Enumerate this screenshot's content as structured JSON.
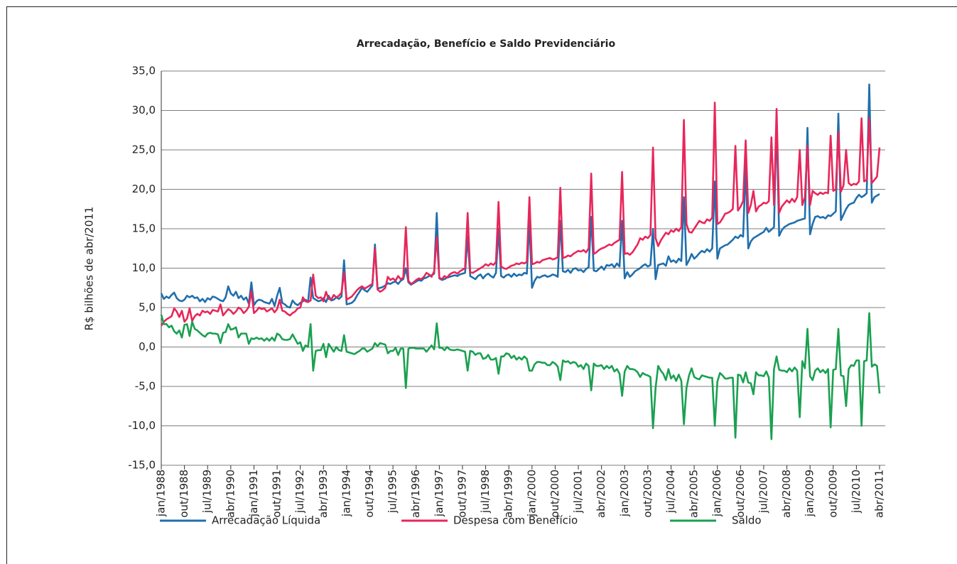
{
  "chart_data": {
    "type": "line",
    "title": "Arrecadação, Benefício e Saldo Previdenciário",
    "y_label": "R$ bilhões de abr/2011",
    "ylim": [
      -15,
      35
    ],
    "yticks": [
      {
        "value": -15,
        "label": "-15,0"
      },
      {
        "value": -10,
        "label": "-10,0"
      },
      {
        "value": -5,
        "label": "-5,0"
      },
      {
        "value": 0,
        "label": "0,0"
      },
      {
        "value": 5,
        "label": "5,0"
      },
      {
        "value": 10,
        "label": "10,0"
      },
      {
        "value": 15,
        "label": "15,0"
      },
      {
        "value": 20,
        "label": "20,0"
      },
      {
        "value": 25,
        "label": "25,0"
      },
      {
        "value": 30,
        "label": "30,0"
      },
      {
        "value": 35,
        "label": "35,0"
      }
    ],
    "grid": true,
    "legend": "bottom",
    "categories": [
      "jan/1988",
      null,
      null,
      null,
      null,
      null,
      null,
      null,
      null,
      "out/1988",
      null,
      null,
      null,
      null,
      null,
      null,
      null,
      null,
      "jul/1989",
      null,
      null,
      null,
      null,
      null,
      null,
      null,
      null,
      "abr/1990",
      null,
      null,
      null,
      null,
      null,
      null,
      null,
      null,
      "jan/1991",
      null,
      null,
      null,
      null,
      null,
      null,
      null,
      null,
      "out/1991",
      null,
      null,
      null,
      null,
      null,
      null,
      null,
      null,
      "jul/1992",
      null,
      null,
      null,
      null,
      null,
      null,
      null,
      null,
      "abr/1993",
      null,
      null,
      null,
      null,
      null,
      null,
      null,
      null,
      "jan/1994",
      null,
      null,
      null,
      null,
      null,
      null,
      null,
      null,
      "out/1994",
      null,
      null,
      null,
      null,
      null,
      null,
      null,
      null,
      "jul/1995",
      null,
      null,
      null,
      null,
      null,
      null,
      null,
      null,
      "abr/1996",
      null,
      null,
      null,
      null,
      null,
      null,
      null,
      null,
      "jan/1997",
      null,
      null,
      null,
      null,
      null,
      null,
      null,
      null,
      "out/1997",
      null,
      null,
      null,
      null,
      null,
      null,
      null,
      null,
      "jul/1998",
      null,
      null,
      null,
      null,
      null,
      null,
      null,
      null,
      "abr/1999",
      null,
      null,
      null,
      null,
      null,
      null,
      null,
      null,
      "jan/2000",
      null,
      null,
      null,
      null,
      null,
      null,
      null,
      null,
      "out/2000",
      null,
      null,
      null,
      null,
      null,
      null,
      null,
      null,
      "jul/2001",
      null,
      null,
      null,
      null,
      null,
      null,
      null,
      null,
      "abr/2002",
      null,
      null,
      null,
      null,
      null,
      null,
      null,
      null,
      "jan/2003",
      null,
      null,
      null,
      null,
      null,
      null,
      null,
      null,
      "out/2003",
      null,
      null,
      null,
      null,
      null,
      null,
      null,
      null,
      "jul/2004",
      null,
      null,
      null,
      null,
      null,
      null,
      null,
      null,
      "abr/2005",
      null,
      null,
      null,
      null,
      null,
      null,
      null,
      null,
      "jan/2006",
      null,
      null,
      null,
      null,
      null,
      null,
      null,
      null,
      "out/2006",
      null,
      null,
      null,
      null,
      null,
      null,
      null,
      null,
      "jul/2007",
      null,
      null,
      null,
      null,
      null,
      null,
      null,
      null,
      "abr/2008",
      null,
      null,
      null,
      null,
      null,
      null,
      null,
      null,
      "jan/2009",
      null,
      null,
      null,
      null,
      null,
      null,
      null,
      null,
      "out/2009",
      null,
      null,
      null,
      null,
      null,
      null,
      null,
      null,
      "jul/2010",
      null,
      null,
      null,
      null,
      null,
      null,
      null,
      null,
      "abr/2011"
    ],
    "series": [
      {
        "name": "Arrecadação Líquida",
        "color": "#1f6fad",
        "values": [
          6.8,
          6.1,
          6.4,
          6.2,
          6.6,
          6.9,
          6.2,
          5.9,
          5.8,
          6.0,
          6.5,
          6.3,
          6.5,
          6.2,
          6.3,
          5.8,
          6.1,
          5.7,
          6.2,
          6.0,
          6.4,
          6.3,
          6.1,
          5.9,
          5.8,
          6.3,
          7.7,
          6.8,
          6.5,
          7.0,
          6.2,
          6.5,
          6.0,
          6.3,
          5.5,
          8.2,
          5.3,
          5.8,
          6.0,
          5.9,
          5.7,
          5.6,
          5.5,
          6.1,
          5.2,
          6.5,
          7.5,
          5.6,
          5.4,
          5.1,
          5.0,
          5.9,
          5.5,
          5.3,
          5.6,
          5.8,
          6.0,
          5.7,
          8.8,
          6.2,
          6.0,
          5.8,
          5.9,
          6.2,
          5.7,
          6.5,
          5.9,
          6.0,
          6.3,
          6.1,
          6.4,
          11.0,
          5.4,
          5.5,
          5.6,
          5.9,
          6.5,
          7.0,
          7.5,
          7.2,
          7.0,
          7.4,
          7.8,
          13.0,
          7.4,
          7.5,
          7.6,
          7.8,
          8.1,
          8.0,
          8.2,
          8.3,
          8.0,
          8.4,
          8.6,
          10.0,
          8.2,
          7.9,
          8.1,
          8.3,
          8.5,
          8.4,
          8.7,
          8.8,
          9.0,
          9.1,
          9.3,
          17.0,
          8.7,
          8.5,
          8.6,
          8.8,
          8.9,
          9.0,
          9.1,
          9.0,
          9.2,
          9.3,
          9.4,
          14.0,
          9.0,
          8.8,
          8.6,
          9.0,
          9.2,
          8.7,
          9.1,
          9.3,
          9.0,
          8.8,
          9.4,
          15.0,
          9.0,
          8.8,
          9.1,
          9.2,
          8.9,
          9.3,
          9.0,
          9.2,
          9.1,
          9.4,
          9.3,
          16.0,
          7.5,
          8.4,
          8.9,
          8.8,
          9.0,
          9.1,
          8.9,
          9.0,
          9.2,
          9.1,
          8.9,
          16.0,
          9.6,
          9.5,
          9.8,
          9.4,
          9.9,
          10.0,
          9.7,
          9.8,
          9.5,
          9.9,
          10.1,
          16.5,
          9.7,
          9.6,
          9.9,
          10.2,
          9.8,
          10.4,
          10.3,
          10.5,
          10.1,
          10.6,
          10.2,
          16.0,
          8.7,
          9.5,
          8.9,
          9.2,
          9.6,
          9.8,
          10.0,
          10.3,
          10.5,
          10.2,
          10.4,
          15.0,
          8.6,
          10.4,
          10.5,
          10.6,
          10.3,
          11.5,
          10.8,
          11.0,
          10.7,
          11.2,
          10.9,
          19.0,
          10.4,
          11.0,
          11.8,
          11.2,
          11.5,
          11.9,
          12.2,
          12.0,
          12.4,
          12.1,
          12.5,
          21.0,
          11.2,
          12.5,
          12.7,
          12.9,
          13.0,
          13.3,
          13.6,
          14.0,
          13.8,
          14.2,
          14.0,
          23.0,
          12.5,
          13.4,
          13.8,
          14.0,
          14.2,
          14.4,
          14.6,
          15.1,
          14.6,
          14.9,
          15.2,
          29.0,
          14.1,
          14.8,
          15.2,
          15.4,
          15.6,
          15.7,
          15.8,
          16.0,
          16.1,
          16.2,
          16.3,
          27.8,
          14.3,
          15.6,
          16.5,
          16.6,
          16.4,
          16.5,
          16.3,
          16.7,
          16.6,
          16.9,
          17.2,
          29.6,
          16.1,
          16.8,
          17.5,
          18.0,
          18.2,
          18.3,
          18.9,
          19.3,
          19.0,
          19.2,
          19.5,
          33.3,
          18.3,
          19.0,
          19.2,
          19.4
        ]
      },
      {
        "name": "Despesa com Benefício",
        "color": "#e8265a",
        "values": [
          2.7,
          3.2,
          3.5,
          3.7,
          3.9,
          4.9,
          4.5,
          3.8,
          4.6,
          3.2,
          3.6,
          4.9,
          3.3,
          3.9,
          4.2,
          4.0,
          4.6,
          4.4,
          4.5,
          4.2,
          4.7,
          4.6,
          4.5,
          5.4,
          4.0,
          4.4,
          4.8,
          4.6,
          4.2,
          4.5,
          5.0,
          4.8,
          4.3,
          4.6,
          5.1,
          7.1,
          4.3,
          4.6,
          5.0,
          4.8,
          4.9,
          4.5,
          4.7,
          4.9,
          4.4,
          4.8,
          6.0,
          4.6,
          4.5,
          4.2,
          4.0,
          4.3,
          4.5,
          4.9,
          5.0,
          6.3,
          5.8,
          5.7,
          5.9,
          9.2,
          6.5,
          6.2,
          6.3,
          5.8,
          7.0,
          6.1,
          6.0,
          6.6,
          6.3,
          6.5,
          6.9,
          9.5,
          6.0,
          6.2,
          6.4,
          6.8,
          7.2,
          7.5,
          7.7,
          7.4,
          7.6,
          7.8,
          8.0,
          12.5,
          7.3,
          7.0,
          7.2,
          7.5,
          8.9,
          8.5,
          8.7,
          8.4,
          9.0,
          8.6,
          8.8,
          15.2,
          8.4,
          8.0,
          8.2,
          8.5,
          8.7,
          8.6,
          8.9,
          9.4,
          9.2,
          8.9,
          9.6,
          14.0,
          8.8,
          8.6,
          9.0,
          8.8,
          9.2,
          9.4,
          9.5,
          9.3,
          9.6,
          9.8,
          10.0,
          17.0,
          9.5,
          9.4,
          9.6,
          9.8,
          10.0,
          10.2,
          10.5,
          10.3,
          10.6,
          10.4,
          10.8,
          18.4,
          10.2,
          10.0,
          9.9,
          10.1,
          10.3,
          10.4,
          10.6,
          10.5,
          10.7,
          10.6,
          10.8,
          19.0,
          10.5,
          10.6,
          10.8,
          10.7,
          11.0,
          11.1,
          11.2,
          11.3,
          11.1,
          11.2,
          11.4,
          20.2,
          11.3,
          11.4,
          11.6,
          11.5,
          11.8,
          12.0,
          12.2,
          12.1,
          12.3,
          12.0,
          12.5,
          22.0,
          11.8,
          12.0,
          12.3,
          12.5,
          12.6,
          12.8,
          13.0,
          12.9,
          13.2,
          13.4,
          13.6,
          22.2,
          11.8,
          11.9,
          11.7,
          12.0,
          12.5,
          13.0,
          13.8,
          13.6,
          14.0,
          13.8,
          14.2,
          25.3,
          13.8,
          12.8,
          13.5,
          14.0,
          14.5,
          14.3,
          14.8,
          14.6,
          15.0,
          14.7,
          15.2,
          28.8,
          15.6,
          14.6,
          14.5,
          15.0,
          15.5,
          16.0,
          15.8,
          15.7,
          16.2,
          16.0,
          16.4,
          31.0,
          15.6,
          15.8,
          16.3,
          16.9,
          17.0,
          17.2,
          17.5,
          25.5,
          17.3,
          17.8,
          18.5,
          26.2,
          17.0,
          18.0,
          19.8,
          17.2,
          17.8,
          18.0,
          18.3,
          18.2,
          18.5,
          26.6,
          18.0,
          30.2,
          17.0,
          17.8,
          18.2,
          18.6,
          18.3,
          18.8,
          18.4,
          19.0,
          25.0,
          18.0,
          19.0,
          25.5,
          18.0,
          19.8,
          19.5,
          19.3,
          19.6,
          19.4,
          19.6,
          19.5,
          26.8,
          19.8,
          20.0,
          27.3,
          19.7,
          20.5,
          25.0,
          20.8,
          20.5,
          20.7,
          20.6,
          21.0,
          29.0,
          21.0,
          21.2,
          29.0,
          20.8,
          21.2,
          21.6,
          25.3
        ]
      },
      {
        "name": "Saldo",
        "color": "#1aa050",
        "values": [
          4.1,
          2.9,
          2.9,
          2.5,
          2.7,
          2.0,
          1.7,
          2.1,
          1.2,
          2.8,
          2.9,
          1.4,
          3.2,
          2.3,
          2.1,
          1.8,
          1.5,
          1.3,
          1.7,
          1.8,
          1.7,
          1.7,
          1.6,
          0.5,
          1.8,
          1.9,
          2.9,
          2.2,
          2.3,
          2.5,
          1.2,
          1.7,
          1.7,
          1.7,
          0.4,
          1.1,
          1.0,
          1.2,
          1.0,
          1.1,
          0.8,
          1.1,
          0.8,
          1.2,
          0.8,
          1.7,
          1.5,
          1.0,
          0.9,
          0.9,
          1.0,
          1.6,
          1.0,
          0.4,
          0.6,
          -0.5,
          0.2,
          0.0,
          2.9,
          -3.0,
          -0.5,
          -0.4,
          -0.4,
          0.4,
          -1.3,
          0.4,
          -0.1,
          -0.6,
          0.0,
          -0.4,
          -0.5,
          1.5,
          -0.6,
          -0.7,
          -0.8,
          -0.9,
          -0.7,
          -0.5,
          -0.2,
          -0.2,
          -0.6,
          -0.4,
          -0.2,
          0.5,
          0.1,
          0.5,
          0.4,
          0.3,
          -0.8,
          -0.5,
          -0.5,
          -0.1,
          -1.0,
          -0.2,
          -0.2,
          -5.2,
          -0.2,
          -0.1,
          -0.1,
          -0.2,
          -0.2,
          -0.2,
          -0.2,
          -0.6,
          -0.2,
          0.2,
          -0.3,
          3.0,
          -0.1,
          -0.1,
          -0.4,
          0.0,
          -0.3,
          -0.4,
          -0.4,
          -0.3,
          -0.4,
          -0.5,
          -0.6,
          -3.0,
          -0.5,
          -0.6,
          -1.0,
          -0.8,
          -0.8,
          -1.5,
          -1.4,
          -1.0,
          -1.6,
          -1.6,
          -1.4,
          -3.4,
          -1.2,
          -1.2,
          -0.8,
          -0.9,
          -1.4,
          -1.1,
          -1.6,
          -1.3,
          -1.6,
          -1.2,
          -1.5,
          -3.0,
          -3.0,
          -2.2,
          -1.9,
          -1.9,
          -2.0,
          -2.0,
          -2.3,
          -2.3,
          -1.9,
          -2.1,
          -2.5,
          -4.2,
          -1.7,
          -1.9,
          -1.8,
          -2.1,
          -1.9,
          -2.0,
          -2.5,
          -2.3,
          -2.8,
          -2.1,
          -2.4,
          -5.5,
          -2.1,
          -2.4,
          -2.4,
          -2.3,
          -2.8,
          -2.4,
          -2.7,
          -2.4,
          -3.1,
          -2.8,
          -3.4,
          -6.2,
          -3.1,
          -2.4,
          -2.8,
          -2.8,
          -2.9,
          -3.2,
          -3.8,
          -3.3,
          -3.5,
          -3.6,
          -3.8,
          -10.3,
          -5.2,
          -2.4,
          -3.0,
          -3.4,
          -4.2,
          -2.8,
          -4.0,
          -3.6,
          -4.3,
          -3.5,
          -4.3,
          -9.8,
          -5.2,
          -3.6,
          -2.7,
          -3.8,
          -4.0,
          -4.1,
          -3.6,
          -3.7,
          -3.8,
          -3.9,
          -3.9,
          -10.0,
          -4.4,
          -3.3,
          -3.6,
          -4.0,
          -4.0,
          -3.9,
          -3.9,
          -11.5,
          -3.5,
          -3.6,
          -4.5,
          -3.2,
          -4.5,
          -4.6,
          -6.0,
          -3.2,
          -3.6,
          -3.6,
          -3.7,
          -3.1,
          -3.9,
          -11.7,
          -2.8,
          -1.2,
          -2.9,
          -3.0,
          -3.0,
          -3.2,
          -2.7,
          -3.1,
          -2.6,
          -3.0,
          -8.9,
          -1.8,
          -2.7,
          2.3,
          -3.7,
          -4.2,
          -3.0,
          -2.7,
          -3.2,
          -2.9,
          -3.3,
          -2.8,
          -10.2,
          -2.9,
          -2.8,
          2.3,
          -3.6,
          -3.7,
          -7.5,
          -2.8,
          -2.3,
          -2.4,
          -1.7,
          -1.7,
          -10.0,
          -1.8,
          -1.7,
          4.3,
          -2.5,
          -2.2,
          -2.4,
          -5.9
        ]
      }
    ]
  }
}
